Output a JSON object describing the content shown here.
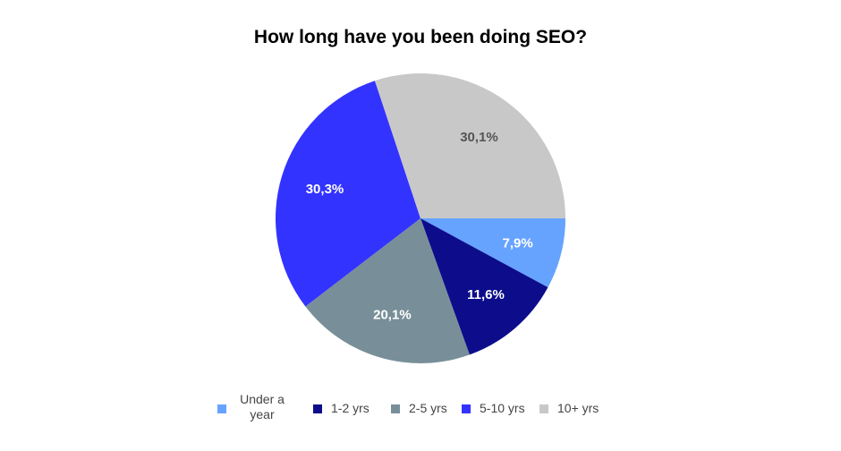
{
  "chart_data": {
    "type": "pie",
    "title": "How long have you been doing SEO?",
    "slices": [
      {
        "label": "Under a year",
        "value": 7.9,
        "display": "7,9%",
        "color": "#66A3FF",
        "text_color": "#FFFFFF"
      },
      {
        "label": "1-2 yrs",
        "value": 11.6,
        "display": "11,6%",
        "color": "#0D0D8C",
        "text_color": "#FFFFFF"
      },
      {
        "label": "2-5 yrs",
        "value": 20.1,
        "display": "20,1%",
        "color": "#788F99",
        "text_color": "#FFFFFF"
      },
      {
        "label": "5-10 yrs",
        "value": 30.3,
        "display": "30,3%",
        "color": "#3333FF",
        "text_color": "#FFFFFF"
      },
      {
        "label": "10+ yrs",
        "value": 30.1,
        "display": "30,1%",
        "color": "#C8C8C8",
        "text_color": "#555555"
      }
    ],
    "start_direction": "3 o'clock",
    "rotation": "clockwise",
    "legend_position": "bottom"
  }
}
